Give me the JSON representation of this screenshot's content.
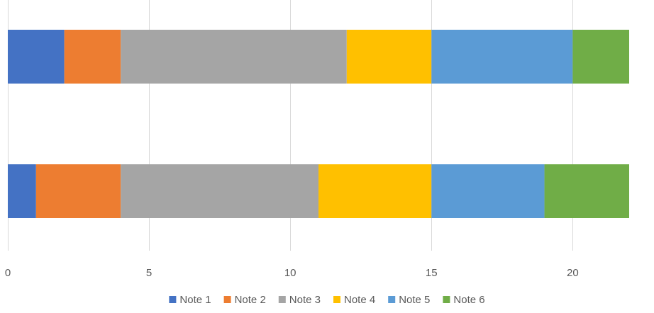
{
  "chart_data": {
    "type": "bar",
    "orientation": "horizontal",
    "stacked": true,
    "categories": [
      "",
      ""
    ],
    "series": [
      {
        "name": "Note 1",
        "color": "#4472C4",
        "values": [
          1,
          2
        ]
      },
      {
        "name": "Note 2",
        "color": "#ED7D31",
        "values": [
          3,
          2
        ]
      },
      {
        "name": "Note 3",
        "color": "#A5A5A5",
        "values": [
          7,
          8
        ]
      },
      {
        "name": "Note 4",
        "color": "#FFC000",
        "values": [
          4,
          3
        ]
      },
      {
        "name": "Note 5",
        "color": "#5B9BD5",
        "values": [
          4,
          5
        ]
      },
      {
        "name": "Note 6",
        "color": "#70AD47",
        "values": [
          3,
          2
        ]
      }
    ],
    "xlim": [
      0,
      22
    ],
    "xticks": [
      0,
      5,
      10,
      15,
      20
    ],
    "xtick_labels": [
      "0",
      "5",
      "10",
      "15",
      "20"
    ],
    "grid": true,
    "legend_position": "bottom",
    "title": "",
    "xlabel": "",
    "ylabel": ""
  }
}
